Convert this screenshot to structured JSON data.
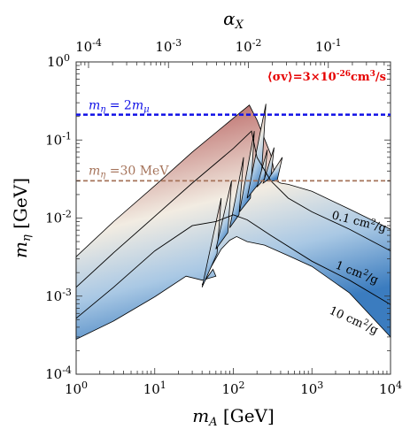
{
  "chart_data": {
    "type": "area",
    "x_axis": {
      "label": "m_A [GeV]",
      "scale": "log",
      "range": [
        1,
        10000
      ],
      "tick_labels": [
        "10^0",
        "10^1",
        "10^2",
        "10^3",
        "10^4"
      ]
    },
    "x_axis_top": {
      "label": "α_X",
      "scale": "log",
      "range": [
        7e-05,
        0.6
      ],
      "tick_labels": [
        "10^-4",
        "10^-3",
        "10^-2",
        "10^-1"
      ]
    },
    "y_axis": {
      "label": "m_η [GeV]",
      "scale": "log",
      "range": [
        0.0001,
        1
      ],
      "tick_labels": [
        "10^0",
        "10^-1",
        "10^-2",
        "10^-3",
        "10^-4"
      ]
    },
    "reference_lines": [
      {
        "label": "m_η = 2m_μ",
        "y": 0.211,
        "color": "#1010e6"
      },
      {
        "label": "m_η =30 MeV",
        "y": 0.03,
        "color": "#a5735a"
      }
    ],
    "contours": [
      {
        "label": "0.1 cm²/g",
        "x": [
          1,
          10,
          100,
          1000,
          10000
        ],
        "y": [
          0.0013,
          0.0078,
          0.07,
          0.011,
          0.0034
        ]
      },
      {
        "label": "1 cm²/g",
        "x": [
          1,
          10,
          100,
          1000,
          10000
        ],
        "y": [
          0.0005,
          0.003,
          0.012,
          0.0022,
          0.00071
        ]
      },
      {
        "label": "10 cm²/g",
        "x": [
          1,
          10,
          100,
          1000,
          10000
        ],
        "y": [
          0.00023,
          0.0012,
          0.004,
          0.00055,
          0.00014
        ]
      }
    ],
    "annotation": "⟨σv⟩=3×10^-26cm³/s",
    "colors": {
      "high": "#8a3b3b",
      "mid": "#f2ece2",
      "low": "#3b7cbf",
      "annotation": "#e60000"
    }
  }
}
